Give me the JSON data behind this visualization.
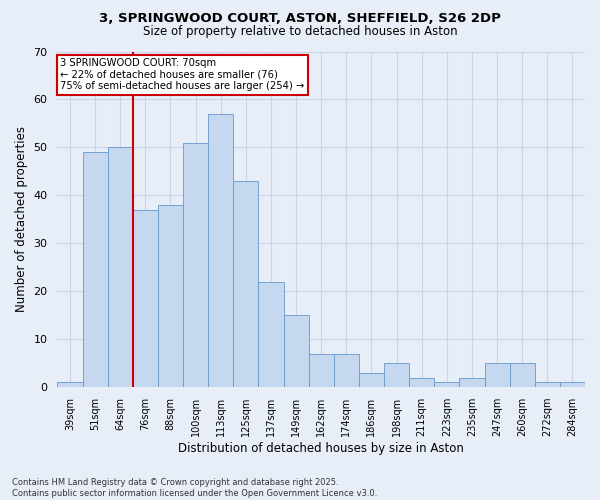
{
  "title_line1": "3, SPRINGWOOD COURT, ASTON, SHEFFIELD, S26 2DP",
  "title_line2": "Size of property relative to detached houses in Aston",
  "xlabel": "Distribution of detached houses by size in Aston",
  "ylabel": "Number of detached properties",
  "categories": [
    "39sqm",
    "51sqm",
    "64sqm",
    "76sqm",
    "88sqm",
    "100sqm",
    "113sqm",
    "125sqm",
    "137sqm",
    "149sqm",
    "162sqm",
    "174sqm",
    "186sqm",
    "198sqm",
    "211sqm",
    "223sqm",
    "235sqm",
    "247sqm",
    "260sqm",
    "272sqm",
    "284sqm"
  ],
  "values": [
    1,
    49,
    50,
    37,
    38,
    51,
    57,
    43,
    22,
    15,
    7,
    7,
    3,
    5,
    2,
    1,
    2,
    5,
    5,
    1,
    1
  ],
  "bar_color": "#c5d8f0",
  "bar_edge_color": "#6699cc",
  "background_color": "#e8eef8",
  "grid_color": "#c8d4e8",
  "vline_x": 2.5,
  "vline_color": "#cc0000",
  "annotation_text": "3 SPRINGWOOD COURT: 70sqm\n← 22% of detached houses are smaller (76)\n75% of semi-detached houses are larger (254) →",
  "annotation_box_color": "#ffffff",
  "annotation_box_edge": "#cc0000",
  "ylim": [
    0,
    70
  ],
  "yticks": [
    0,
    10,
    20,
    30,
    40,
    50,
    60,
    70
  ],
  "footnote": "Contains HM Land Registry data © Crown copyright and database right 2025.\nContains public sector information licensed under the Open Government Licence v3.0."
}
